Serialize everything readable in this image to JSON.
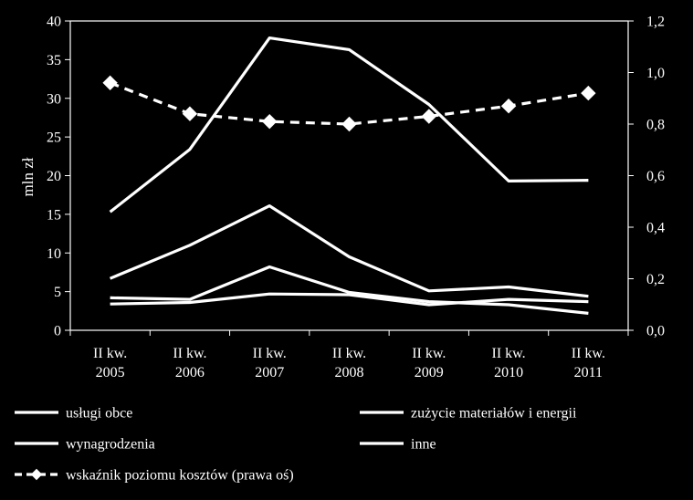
{
  "chart_data": {
    "type": "line",
    "title": "",
    "categories": [
      [
        "II kw.",
        "2005"
      ],
      [
        "II kw.",
        "2006"
      ],
      [
        "II kw.",
        "2007"
      ],
      [
        "II kw.",
        "2008"
      ],
      [
        "II kw.",
        "2009"
      ],
      [
        "II kw.",
        "2010"
      ],
      [
        "II kw.",
        "2011"
      ]
    ],
    "y_left": {
      "label": "mln zł",
      "ylim": [
        0,
        40
      ],
      "ticks": [
        "0",
        "5",
        "10",
        "15",
        "20",
        "25",
        "30",
        "35",
        "40"
      ]
    },
    "y_right": {
      "label": "",
      "ylim": [
        0,
        1.2
      ],
      "ticks": [
        "0,0",
        "0,2",
        "0,4",
        "0,6",
        "0,8",
        "1,0",
        "1,2"
      ]
    },
    "grid": false,
    "legend_position": "bottom",
    "line_color": "#ffffff",
    "background": "#000000",
    "series": [
      {
        "name": "usługi obce",
        "axis": "left",
        "style": "solid",
        "values": [
          15.3,
          23.4,
          37.8,
          36.3,
          29.2,
          19.3,
          19.4
        ]
      },
      {
        "name": "zużycie materiałów i energii",
        "axis": "left",
        "style": "solid",
        "values": [
          4.2,
          4.0,
          8.2,
          4.9,
          3.7,
          3.3,
          2.2
        ]
      },
      {
        "name": "wynagrodzenia",
        "axis": "left",
        "style": "solid",
        "values": [
          6.7,
          11.0,
          16.1,
          9.5,
          5.1,
          5.6,
          4.4
        ]
      },
      {
        "name": "inne",
        "axis": "left",
        "style": "solid",
        "values": [
          3.4,
          3.6,
          4.7,
          4.6,
          3.3,
          4.0,
          3.7
        ]
      },
      {
        "name": "wskaźnik poziomu kosztów (prawa oś)",
        "axis": "right",
        "style": "dashed-diamond",
        "values": [
          0.96,
          0.84,
          0.81,
          0.8,
          0.83,
          0.87,
          0.92
        ]
      }
    ]
  }
}
